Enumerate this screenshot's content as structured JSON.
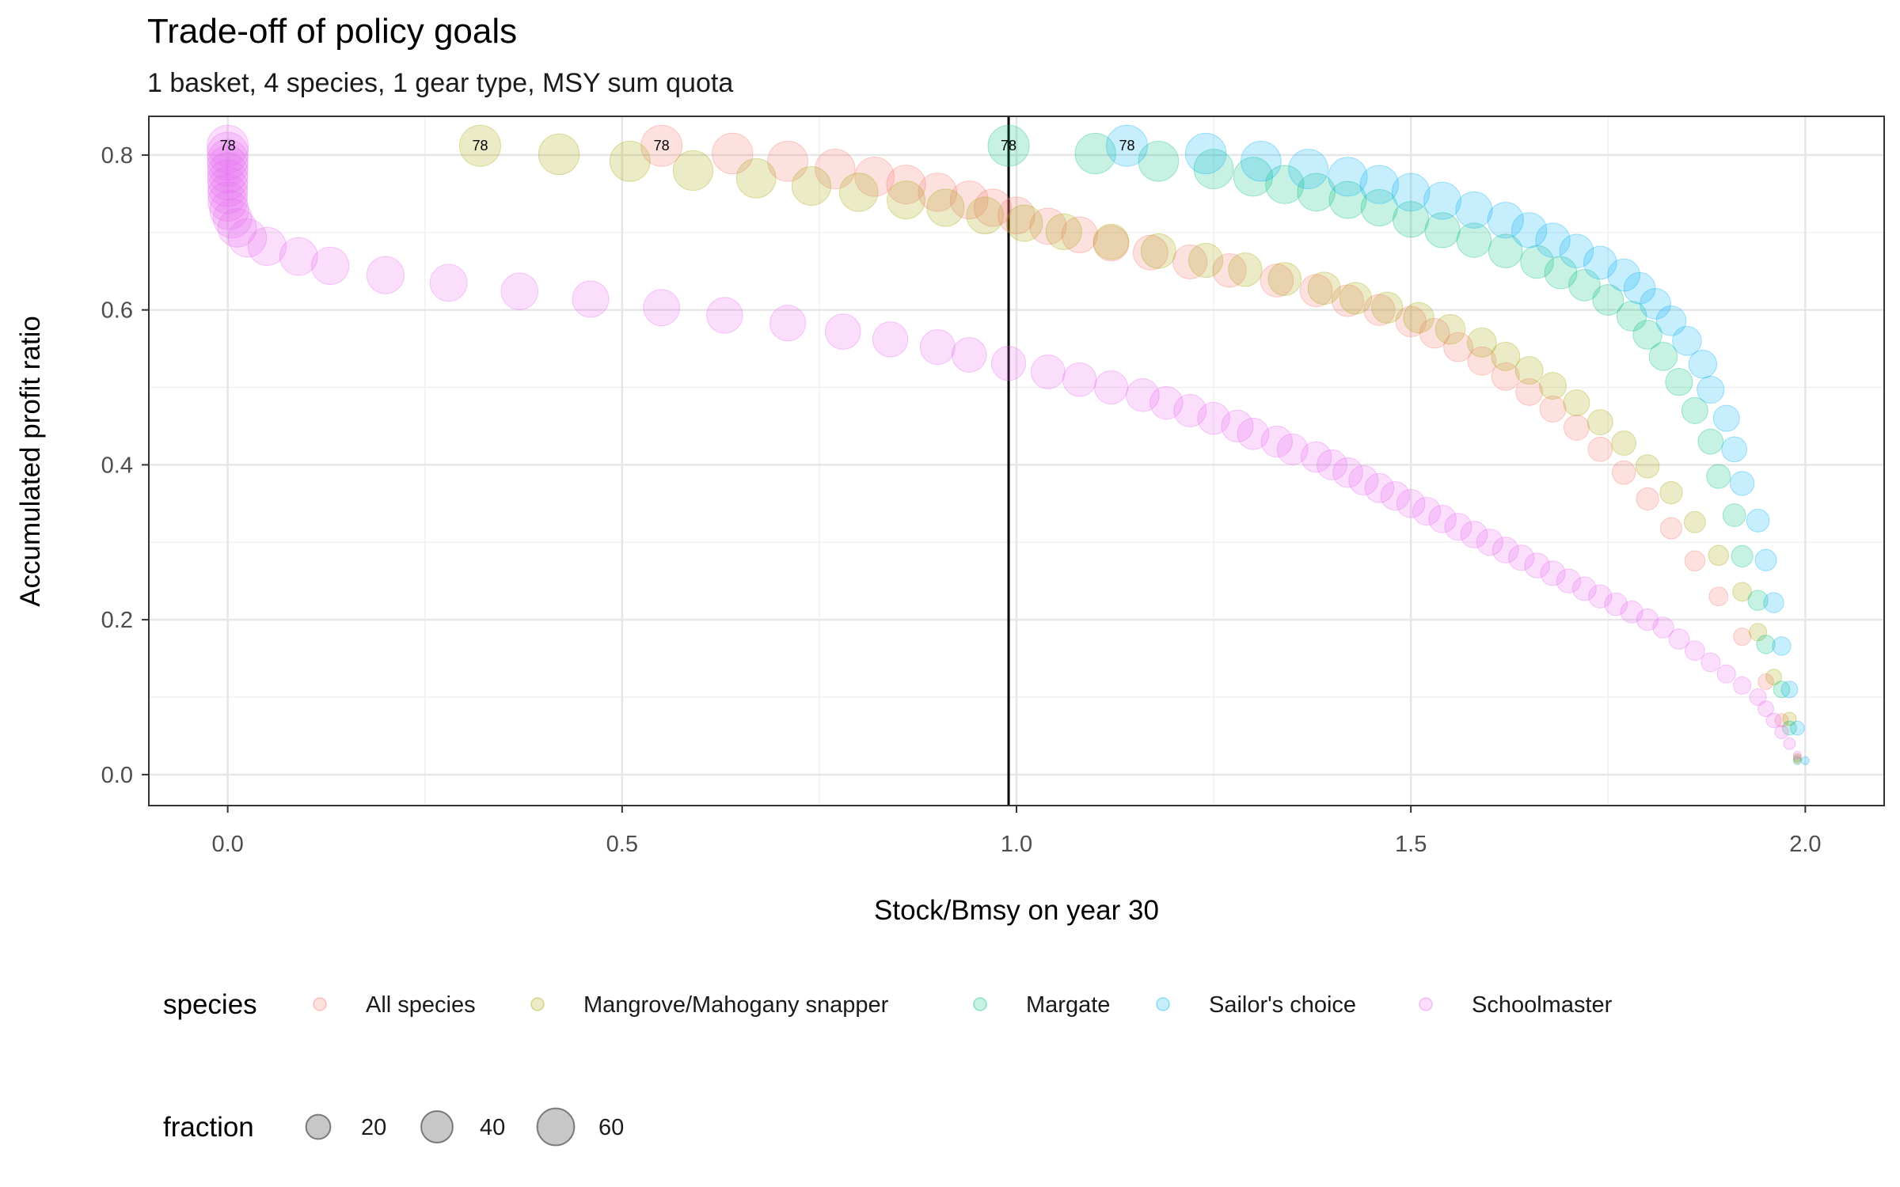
{
  "chart_data": {
    "type": "scatter",
    "title": "Trade-off of policy goals",
    "subtitle": "1 basket, 4 species, 1 gear type, MSY sum quota",
    "xlabel": "Stock/Bmsy on year 30",
    "ylabel": "Accumulated profit ratio",
    "xlim": [
      -0.1,
      2.1
    ],
    "ylim": [
      -0.04,
      0.85
    ],
    "x_ticks": [
      0.0,
      0.5,
      1.0,
      1.5,
      2.0
    ],
    "x_tick_labels": [
      "0.0",
      "0.5",
      "1.0",
      "1.5",
      "2.0"
    ],
    "y_ticks": [
      0.0,
      0.2,
      0.4,
      0.6,
      0.8
    ],
    "y_tick_labels": [
      "0.0",
      "0.2",
      "0.4",
      "0.6",
      "0.8"
    ],
    "grid": true,
    "reference_line_x": 0.99,
    "point_label_text": "78",
    "fraction_range": [
      1,
      78
    ],
    "series": [
      {
        "name": "All species",
        "color": "#F8766D",
        "points": [
          [
            0.55,
            0.812
          ],
          [
            0.64,
            0.802
          ],
          [
            0.71,
            0.792
          ],
          [
            0.77,
            0.782
          ],
          [
            0.82,
            0.772
          ],
          [
            0.86,
            0.762
          ],
          [
            0.9,
            0.752
          ],
          [
            0.94,
            0.742
          ],
          [
            0.97,
            0.732
          ],
          [
            1.0,
            0.722
          ],
          [
            1.04,
            0.708
          ],
          [
            1.08,
            0.697
          ],
          [
            1.12,
            0.686
          ],
          [
            1.17,
            0.674
          ],
          [
            1.22,
            0.662
          ],
          [
            1.27,
            0.651
          ],
          [
            1.33,
            0.638
          ],
          [
            1.38,
            0.625
          ],
          [
            1.42,
            0.612
          ],
          [
            1.46,
            0.6
          ],
          [
            1.5,
            0.585
          ],
          [
            1.53,
            0.57
          ],
          [
            1.56,
            0.552
          ],
          [
            1.59,
            0.534
          ],
          [
            1.62,
            0.514
          ],
          [
            1.65,
            0.494
          ],
          [
            1.68,
            0.472
          ],
          [
            1.71,
            0.448
          ],
          [
            1.74,
            0.42
          ],
          [
            1.77,
            0.39
          ],
          [
            1.8,
            0.356
          ],
          [
            1.83,
            0.318
          ],
          [
            1.86,
            0.276
          ],
          [
            1.89,
            0.23
          ],
          [
            1.92,
            0.178
          ],
          [
            1.95,
            0.12
          ],
          [
            1.97,
            0.07
          ],
          [
            1.99,
            0.02
          ]
        ]
      },
      {
        "name": "Mangrove/Mahogany snapper",
        "color": "#A3A500",
        "points": [
          [
            0.32,
            0.812
          ],
          [
            0.42,
            0.801
          ],
          [
            0.51,
            0.792
          ],
          [
            0.59,
            0.78
          ],
          [
            0.67,
            0.77
          ],
          [
            0.74,
            0.76
          ],
          [
            0.8,
            0.752
          ],
          [
            0.86,
            0.742
          ],
          [
            0.91,
            0.732
          ],
          [
            0.96,
            0.722
          ],
          [
            1.01,
            0.712
          ],
          [
            1.06,
            0.701
          ],
          [
            1.12,
            0.688
          ],
          [
            1.18,
            0.676
          ],
          [
            1.24,
            0.664
          ],
          [
            1.29,
            0.652
          ],
          [
            1.34,
            0.64
          ],
          [
            1.39,
            0.628
          ],
          [
            1.43,
            0.615
          ],
          [
            1.47,
            0.603
          ],
          [
            1.51,
            0.59
          ],
          [
            1.55,
            0.575
          ],
          [
            1.59,
            0.558
          ],
          [
            1.62,
            0.54
          ],
          [
            1.65,
            0.522
          ],
          [
            1.68,
            0.502
          ],
          [
            1.71,
            0.48
          ],
          [
            1.74,
            0.455
          ],
          [
            1.77,
            0.428
          ],
          [
            1.8,
            0.398
          ],
          [
            1.83,
            0.364
          ],
          [
            1.86,
            0.326
          ],
          [
            1.89,
            0.283
          ],
          [
            1.92,
            0.236
          ],
          [
            1.94,
            0.184
          ],
          [
            1.96,
            0.126
          ],
          [
            1.98,
            0.072
          ],
          [
            1.99,
            0.022
          ]
        ]
      },
      {
        "name": "Margate",
        "color": "#00BF7D",
        "points": [
          [
            0.99,
            0.812
          ],
          [
            1.1,
            0.802
          ],
          [
            1.18,
            0.792
          ],
          [
            1.25,
            0.782
          ],
          [
            1.3,
            0.772
          ],
          [
            1.34,
            0.762
          ],
          [
            1.38,
            0.752
          ],
          [
            1.42,
            0.742
          ],
          [
            1.46,
            0.732
          ],
          [
            1.5,
            0.717
          ],
          [
            1.54,
            0.703
          ],
          [
            1.58,
            0.69
          ],
          [
            1.62,
            0.676
          ],
          [
            1.66,
            0.662
          ],
          [
            1.69,
            0.648
          ],
          [
            1.72,
            0.632
          ],
          [
            1.75,
            0.613
          ],
          [
            1.78,
            0.592
          ],
          [
            1.8,
            0.568
          ],
          [
            1.82,
            0.54
          ],
          [
            1.84,
            0.507
          ],
          [
            1.86,
            0.47
          ],
          [
            1.88,
            0.43
          ],
          [
            1.89,
            0.385
          ],
          [
            1.91,
            0.335
          ],
          [
            1.92,
            0.282
          ],
          [
            1.94,
            0.225
          ],
          [
            1.95,
            0.168
          ],
          [
            1.97,
            0.11
          ],
          [
            1.98,
            0.06
          ],
          [
            1.99,
            0.018
          ]
        ]
      },
      {
        "name": "Sailor's choice",
        "color": "#00B0F6",
        "points": [
          [
            1.14,
            0.812
          ],
          [
            1.24,
            0.802
          ],
          [
            1.31,
            0.792
          ],
          [
            1.37,
            0.782
          ],
          [
            1.42,
            0.772
          ],
          [
            1.46,
            0.762
          ],
          [
            1.5,
            0.752
          ],
          [
            1.54,
            0.741
          ],
          [
            1.58,
            0.729
          ],
          [
            1.62,
            0.716
          ],
          [
            1.65,
            0.703
          ],
          [
            1.68,
            0.69
          ],
          [
            1.71,
            0.676
          ],
          [
            1.74,
            0.661
          ],
          [
            1.77,
            0.645
          ],
          [
            1.79,
            0.628
          ],
          [
            1.81,
            0.608
          ],
          [
            1.83,
            0.586
          ],
          [
            1.85,
            0.56
          ],
          [
            1.87,
            0.53
          ],
          [
            1.88,
            0.497
          ],
          [
            1.9,
            0.46
          ],
          [
            1.91,
            0.42
          ],
          [
            1.92,
            0.376
          ],
          [
            1.94,
            0.328
          ],
          [
            1.95,
            0.277
          ],
          [
            1.96,
            0.222
          ],
          [
            1.97,
            0.166
          ],
          [
            1.98,
            0.11
          ],
          [
            1.99,
            0.06
          ],
          [
            2.0,
            0.018
          ]
        ]
      },
      {
        "name": "Schoolmaster",
        "color": "#E76BF3",
        "points": [
          [
            0.0,
            0.812
          ],
          [
            0.0,
            0.803
          ],
          [
            0.0,
            0.794
          ],
          [
            0.0,
            0.786
          ],
          [
            0.0,
            0.777
          ],
          [
            0.0,
            0.768
          ],
          [
            0.0,
            0.759
          ],
          [
            0.0,
            0.75
          ],
          [
            0.0,
            0.74
          ],
          [
            0.002,
            0.729
          ],
          [
            0.006,
            0.718
          ],
          [
            0.012,
            0.706
          ],
          [
            0.025,
            0.693
          ],
          [
            0.05,
            0.682
          ],
          [
            0.09,
            0.669
          ],
          [
            0.13,
            0.657
          ],
          [
            0.2,
            0.645
          ],
          [
            0.28,
            0.635
          ],
          [
            0.37,
            0.624
          ],
          [
            0.46,
            0.614
          ],
          [
            0.55,
            0.603
          ],
          [
            0.63,
            0.593
          ],
          [
            0.71,
            0.583
          ],
          [
            0.78,
            0.572
          ],
          [
            0.84,
            0.562
          ],
          [
            0.9,
            0.552
          ],
          [
            0.94,
            0.542
          ],
          [
            0.99,
            0.531
          ],
          [
            1.04,
            0.52
          ],
          [
            1.08,
            0.51
          ],
          [
            1.12,
            0.5
          ],
          [
            1.16,
            0.49
          ],
          [
            1.19,
            0.48
          ],
          [
            1.22,
            0.47
          ],
          [
            1.25,
            0.46
          ],
          [
            1.28,
            0.45
          ],
          [
            1.3,
            0.44
          ],
          [
            1.33,
            0.43
          ],
          [
            1.35,
            0.42
          ],
          [
            1.38,
            0.41
          ],
          [
            1.4,
            0.4
          ],
          [
            1.42,
            0.39
          ],
          [
            1.44,
            0.38
          ],
          [
            1.46,
            0.37
          ],
          [
            1.48,
            0.36
          ],
          [
            1.5,
            0.35
          ],
          [
            1.52,
            0.34
          ],
          [
            1.54,
            0.33
          ],
          [
            1.56,
            0.32
          ],
          [
            1.58,
            0.31
          ],
          [
            1.6,
            0.3
          ],
          [
            1.62,
            0.29
          ],
          [
            1.64,
            0.28
          ],
          [
            1.66,
            0.27
          ],
          [
            1.68,
            0.26
          ],
          [
            1.7,
            0.25
          ],
          [
            1.72,
            0.24
          ],
          [
            1.74,
            0.23
          ],
          [
            1.76,
            0.22
          ],
          [
            1.78,
            0.21
          ],
          [
            1.8,
            0.2
          ],
          [
            1.82,
            0.19
          ],
          [
            1.84,
            0.175
          ],
          [
            1.86,
            0.16
          ],
          [
            1.88,
            0.145
          ],
          [
            1.9,
            0.13
          ],
          [
            1.92,
            0.115
          ],
          [
            1.94,
            0.1
          ],
          [
            1.95,
            0.085
          ],
          [
            1.96,
            0.07
          ],
          [
            1.97,
            0.055
          ],
          [
            1.98,
            0.04
          ],
          [
            1.99,
            0.025
          ]
        ]
      }
    ],
    "legend_species": {
      "title": "species",
      "entries": [
        "All species",
        "Mangrove/Mahogany snapper",
        "Margate",
        "Sailor's choice",
        "Schoolmaster"
      ]
    },
    "legend_fraction": {
      "title": "fraction",
      "entries": [
        {
          "label": "20",
          "value": 20
        },
        {
          "label": "40",
          "value": 40
        },
        {
          "label": "60",
          "value": 60
        }
      ]
    }
  }
}
